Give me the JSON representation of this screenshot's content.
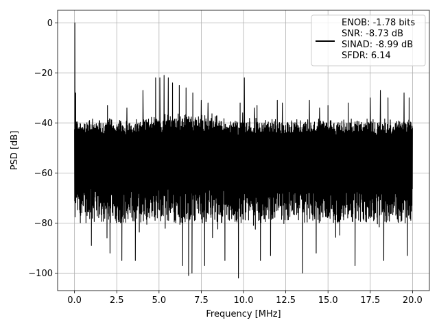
{
  "chart_data": {
    "type": "line",
    "title": "",
    "xlabel": "Frequency [MHz]",
    "ylabel": "PSD [dB]",
    "xlim": [
      -1.0,
      21.0
    ],
    "ylim": [
      -107,
      5
    ],
    "xticks": [
      0.0,
      2.5,
      5.0,
      7.5,
      10.0,
      12.5,
      15.0,
      17.5,
      20.0
    ],
    "xtick_labels": [
      "0.0",
      "2.5",
      "5.0",
      "7.5",
      "10.0",
      "12.5",
      "15.0",
      "17.5",
      "20.0"
    ],
    "yticks": [
      0,
      -20,
      -40,
      -60,
      -80,
      -100
    ],
    "ytick_labels": [
      "0",
      "−20",
      "−40",
      "−60",
      "−80",
      "−100"
    ],
    "grid": true,
    "legend": {
      "position": "upper-right",
      "entries": [
        "ENOB: -1.78 bits",
        "SNR: -8.73 dB",
        "SINAD: -8.99 dB",
        "SFDR: 6.14"
      ]
    },
    "series": [
      {
        "color": "#000000",
        "x_range": [
          0.0,
          20.0
        ],
        "typical_top_db": -38,
        "typical_bottom_db": -80,
        "deepest_dips": [
          {
            "x": 1.0,
            "y": -89
          },
          {
            "x": 2.1,
            "y": -92
          },
          {
            "x": 2.8,
            "y": -95
          },
          {
            "x": 3.6,
            "y": -95
          },
          {
            "x": 6.4,
            "y": -97
          },
          {
            "x": 6.75,
            "y": -101
          },
          {
            "x": 6.95,
            "y": -100
          },
          {
            "x": 7.7,
            "y": -97
          },
          {
            "x": 8.9,
            "y": -95
          },
          {
            "x": 9.7,
            "y": -102
          },
          {
            "x": 11.0,
            "y": -95
          },
          {
            "x": 11.6,
            "y": -93
          },
          {
            "x": 13.5,
            "y": -100
          },
          {
            "x": 14.3,
            "y": -92
          },
          {
            "x": 16.6,
            "y": -97
          },
          {
            "x": 18.3,
            "y": -95
          },
          {
            "x": 19.7,
            "y": -93
          }
        ],
        "peaks": [
          {
            "x": 0.02,
            "y": 0
          },
          {
            "x": 0.07,
            "y": -28
          },
          {
            "x": 1.95,
            "y": -33
          },
          {
            "x": 4.05,
            "y": -27
          },
          {
            "x": 4.8,
            "y": -22
          },
          {
            "x": 5.05,
            "y": -22
          },
          {
            "x": 5.3,
            "y": -21
          },
          {
            "x": 5.55,
            "y": -22
          },
          {
            "x": 5.8,
            "y": -24
          },
          {
            "x": 6.2,
            "y": -25
          },
          {
            "x": 6.6,
            "y": -26
          },
          {
            "x": 7.0,
            "y": -28
          },
          {
            "x": 7.5,
            "y": -31
          },
          {
            "x": 7.9,
            "y": -32
          },
          {
            "x": 9.8,
            "y": -32
          },
          {
            "x": 10.05,
            "y": -33
          },
          {
            "x": 10.65,
            "y": -34
          },
          {
            "x": 10.8,
            "y": -33
          },
          {
            "x": 12.0,
            "y": -31
          },
          {
            "x": 12.3,
            "y": -32
          },
          {
            "x": 13.9,
            "y": -31
          },
          {
            "x": 15.0,
            "y": -33
          },
          {
            "x": 16.2,
            "y": -32
          },
          {
            "x": 17.5,
            "y": -30
          },
          {
            "x": 18.1,
            "y": -27
          },
          {
            "x": 18.55,
            "y": -30
          },
          {
            "x": 19.5,
            "y": -28
          },
          {
            "x": 19.8,
            "y": -30
          },
          {
            "x": 9.95,
            "y": -36
          },
          {
            "x": 14.5,
            "y": -34
          },
          {
            "x": 3.1,
            "y": -34
          }
        ],
        "spike_tone": {
          "x": 10.05,
          "y": -22
        }
      }
    ]
  }
}
